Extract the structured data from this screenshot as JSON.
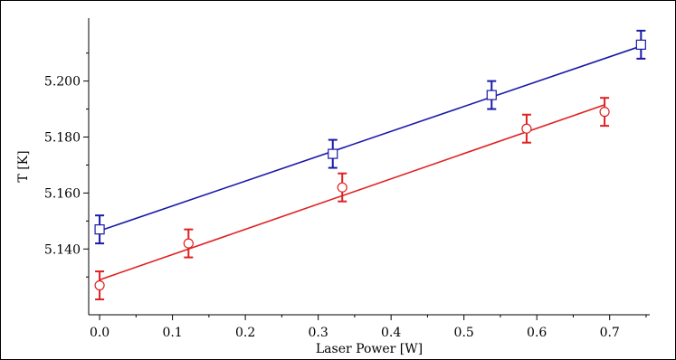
{
  "chart_data": {
    "type": "scatter",
    "xlabel": "Laser Power [W]",
    "ylabel": "T [K]",
    "xlim": [
      -0.015,
      0.755
    ],
    "ylim": [
      5.1165,
      5.2225
    ],
    "x_ticks": [
      0.0,
      0.1,
      0.2,
      0.3,
      0.4,
      0.5,
      0.6,
      0.7
    ],
    "x_tick_labels": [
      "0.0",
      "0.1",
      "0.2",
      "0.3",
      "0.4",
      "0.5",
      "0.6",
      "0.7"
    ],
    "y_ticks": [
      5.14,
      5.16,
      5.18,
      5.2
    ],
    "y_tick_labels": [
      "5.140",
      "5.160",
      "5.180",
      "5.200"
    ],
    "grid": false,
    "series": [
      {
        "marker": "square",
        "color": "#1a1aa8",
        "x": [
          0.0,
          0.32,
          0.538,
          0.743
        ],
        "y": [
          5.147,
          5.174,
          5.195,
          5.213
        ],
        "error": [
          0.005,
          0.005,
          0.005,
          0.005
        ],
        "fit": {
          "x": [
            0.0,
            0.743
          ],
          "y": [
            5.1465,
            5.2125
          ]
        }
      },
      {
        "marker": "circle",
        "color": "#e02020",
        "x": [
          0.0,
          0.122,
          0.333,
          0.586,
          0.693
        ],
        "y": [
          5.127,
          5.142,
          5.162,
          5.183,
          5.189
        ],
        "error": [
          0.005,
          0.005,
          0.005,
          0.005,
          0.005
        ],
        "fit": {
          "x": [
            0.0,
            0.693
          ],
          "y": [
            5.129,
            5.1915
          ]
        }
      }
    ]
  }
}
